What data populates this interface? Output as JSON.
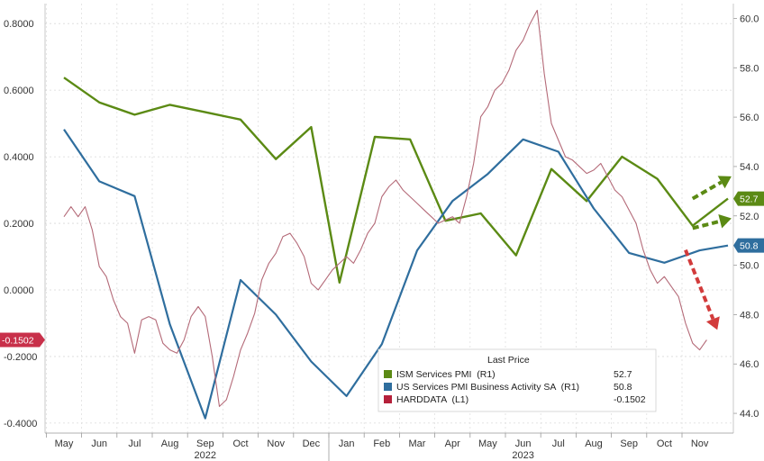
{
  "chart_data": {
    "type": "line",
    "x_months": [
      "May",
      "Jun",
      "Jul",
      "Aug",
      "Sep",
      "Oct",
      "Nov",
      "Dec",
      "Jan",
      "Feb",
      "Mar",
      "Apr",
      "May",
      "Jun",
      "Jul",
      "Aug",
      "Sep",
      "Oct",
      "Nov"
    ],
    "year_labels": [
      {
        "label": "2022",
        "month_index": 4
      },
      {
        "label": "2023",
        "month_index": 13
      }
    ],
    "left_axis": {
      "ylim": [
        -0.43,
        0.86
      ],
      "ticks": [
        "0.8000",
        "0.6000",
        "0.4000",
        "0.2000",
        "0.0000",
        "-0.2000",
        "-0.4000"
      ],
      "tick_values": [
        0.8,
        0.6,
        0.4,
        0.2,
        0.0,
        -0.2,
        -0.4
      ]
    },
    "right_axis": {
      "ylim": [
        43.2,
        60.6
      ],
      "ticks": [
        "60.0",
        "58.0",
        "56.0",
        "54.0",
        "52.0",
        "50.0",
        "48.0",
        "46.0",
        "44.0"
      ],
      "tick_values": [
        60,
        58,
        56,
        54,
        52,
        50,
        48,
        46,
        44
      ]
    },
    "grid": true,
    "legend_title": "Last Price",
    "legend_placement": "bottom-right",
    "series": [
      {
        "name": "ISM Services PMI  (R1)",
        "axis": "right",
        "color": "#5b8a14",
        "last_value": "52.7",
        "badge_value": "52.7",
        "points": [
          [
            0.0,
            57.6
          ],
          [
            1.0,
            56.6
          ],
          [
            2.0,
            56.1
          ],
          [
            3.0,
            56.5
          ],
          [
            4.0,
            56.2
          ],
          [
            5.0,
            55.9
          ],
          [
            6.0,
            54.3
          ],
          [
            7.0,
            55.6
          ],
          [
            7.8,
            49.3
          ],
          [
            8.8,
            55.2
          ],
          [
            9.8,
            55.1
          ],
          [
            10.8,
            51.8
          ],
          [
            11.8,
            52.1
          ],
          [
            12.8,
            50.4
          ],
          [
            13.8,
            53.9
          ],
          [
            14.8,
            52.6
          ],
          [
            15.8,
            54.4
          ],
          [
            16.8,
            53.5
          ],
          [
            17.8,
            51.6
          ],
          [
            18.8,
            52.7
          ]
        ]
      },
      {
        "name": "US Services PMI Business Activity SA  (R1)",
        "axis": "right",
        "color": "#2f6e9e",
        "last_value": "50.8",
        "badge_value": "50.8",
        "points": [
          [
            0.0,
            55.5
          ],
          [
            1.0,
            53.4
          ],
          [
            2.0,
            52.8
          ],
          [
            3.0,
            47.6
          ],
          [
            4.0,
            43.8
          ],
          [
            5.0,
            49.4
          ],
          [
            6.0,
            48.0
          ],
          [
            7.0,
            46.1
          ],
          [
            8.0,
            44.7
          ],
          [
            9.0,
            46.8
          ],
          [
            10.0,
            50.6
          ],
          [
            11.0,
            52.6
          ],
          [
            12.0,
            53.7
          ],
          [
            13.0,
            55.1
          ],
          [
            14.0,
            54.6
          ],
          [
            15.0,
            52.3
          ],
          [
            16.0,
            50.5
          ],
          [
            17.0,
            50.1
          ],
          [
            18.0,
            50.6
          ],
          [
            18.8,
            50.8
          ]
        ]
      },
      {
        "name": "HARDDATA  (L1)",
        "axis": "left",
        "color": "#b46a78",
        "last_value": "-0.1502",
        "badge_value": "-0.1502",
        "points": [
          [
            0.0,
            0.22
          ],
          [
            0.2,
            0.25
          ],
          [
            0.4,
            0.22
          ],
          [
            0.6,
            0.25
          ],
          [
            0.8,
            0.18
          ],
          [
            1.0,
            0.07
          ],
          [
            1.2,
            0.04
          ],
          [
            1.4,
            -0.03
          ],
          [
            1.6,
            -0.08
          ],
          [
            1.8,
            -0.1
          ],
          [
            2.0,
            -0.19
          ],
          [
            2.2,
            -0.09
          ],
          [
            2.4,
            -0.08
          ],
          [
            2.6,
            -0.09
          ],
          [
            2.8,
            -0.16
          ],
          [
            3.0,
            -0.18
          ],
          [
            3.2,
            -0.19
          ],
          [
            3.4,
            -0.15
          ],
          [
            3.6,
            -0.08
          ],
          [
            3.8,
            -0.05
          ],
          [
            4.0,
            -0.08
          ],
          [
            4.2,
            -0.2
          ],
          [
            4.4,
            -0.35
          ],
          [
            4.6,
            -0.33
          ],
          [
            4.8,
            -0.26
          ],
          [
            5.0,
            -0.18
          ],
          [
            5.2,
            -0.13
          ],
          [
            5.4,
            -0.07
          ],
          [
            5.6,
            0.03
          ],
          [
            5.8,
            0.08
          ],
          [
            6.0,
            0.11
          ],
          [
            6.2,
            0.16
          ],
          [
            6.4,
            0.17
          ],
          [
            6.6,
            0.14
          ],
          [
            6.8,
            0.1
          ],
          [
            7.0,
            0.02
          ],
          [
            7.2,
            0.0
          ],
          [
            7.4,
            0.03
          ],
          [
            7.6,
            0.06
          ],
          [
            7.8,
            0.08
          ],
          [
            8.0,
            0.1
          ],
          [
            8.2,
            0.08
          ],
          [
            8.4,
            0.12
          ],
          [
            8.6,
            0.17
          ],
          [
            8.8,
            0.2
          ],
          [
            9.0,
            0.28
          ],
          [
            9.2,
            0.31
          ],
          [
            9.4,
            0.33
          ],
          [
            9.6,
            0.3
          ],
          [
            9.8,
            0.28
          ],
          [
            10.0,
            0.26
          ],
          [
            10.2,
            0.24
          ],
          [
            10.4,
            0.22
          ],
          [
            10.6,
            0.2
          ],
          [
            10.8,
            0.21
          ],
          [
            11.0,
            0.22
          ],
          [
            11.2,
            0.2
          ],
          [
            11.4,
            0.28
          ],
          [
            11.6,
            0.38
          ],
          [
            11.8,
            0.52
          ],
          [
            12.0,
            0.55
          ],
          [
            12.2,
            0.6
          ],
          [
            12.4,
            0.62
          ],
          [
            12.6,
            0.66
          ],
          [
            12.8,
            0.72
          ],
          [
            13.0,
            0.75
          ],
          [
            13.2,
            0.8
          ],
          [
            13.4,
            0.84
          ],
          [
            13.6,
            0.65
          ],
          [
            13.8,
            0.5
          ],
          [
            14.0,
            0.45
          ],
          [
            14.2,
            0.4
          ],
          [
            14.4,
            0.39
          ],
          [
            14.6,
            0.37
          ],
          [
            14.8,
            0.35
          ],
          [
            15.0,
            0.36
          ],
          [
            15.2,
            0.38
          ],
          [
            15.4,
            0.34
          ],
          [
            15.6,
            0.3
          ],
          [
            15.8,
            0.28
          ],
          [
            16.0,
            0.24
          ],
          [
            16.2,
            0.2
          ],
          [
            16.4,
            0.12
          ],
          [
            16.6,
            0.06
          ],
          [
            16.8,
            0.02
          ],
          [
            17.0,
            0.04
          ],
          [
            17.2,
            0.01
          ],
          [
            17.4,
            -0.02
          ],
          [
            17.6,
            -0.1
          ],
          [
            17.8,
            -0.16
          ],
          [
            18.0,
            -0.18
          ],
          [
            18.2,
            -0.15
          ]
        ]
      }
    ],
    "annotations": [
      {
        "type": "dashed-arrow",
        "color": "#5b8a14",
        "from": [
          17.8,
          52.7
        ],
        "to": [
          18.9,
          53.6
        ],
        "axis": "right"
      },
      {
        "type": "dashed-arrow",
        "color": "#5b8a14",
        "from": [
          17.8,
          51.5
        ],
        "to": [
          18.9,
          51.9
        ],
        "axis": "right"
      },
      {
        "type": "dashed-arrow",
        "color": "#d23b3b",
        "from": [
          17.6,
          0.12
        ],
        "to": [
          18.5,
          -0.12
        ],
        "axis": "left"
      }
    ]
  }
}
